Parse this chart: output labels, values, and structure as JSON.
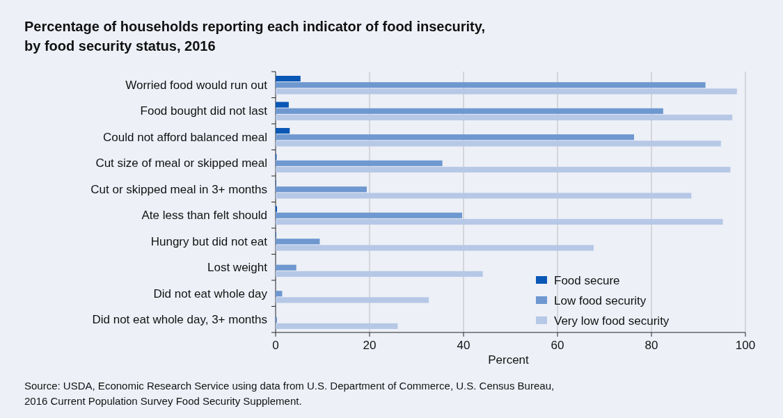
{
  "chart_data": {
    "type": "bar",
    "orientation": "horizontal",
    "title": "Percentage of households reporting each indicator of food insecurity,\nby food security status, 2016",
    "xlabel": "Percent",
    "categories": [
      "Worried food would run out",
      "Food bought did not last",
      "Could not afford balanced meal",
      "Cut size of meal or skipped meal",
      "Cut or skipped meal in 3+ months",
      "Ate less than felt should",
      "Hungry but did not eat",
      "Lost weight",
      "Did not eat whole day",
      "Did not eat whole day, 3+ months"
    ],
    "series": [
      {
        "name": "Food secure",
        "color": "#0a57b5",
        "values": [
          5.3,
          2.8,
          3.0,
          0.2,
          0.1,
          0.3,
          0.1,
          0,
          0,
          0
        ]
      },
      {
        "name": "Low food security",
        "color": "#6f98d0",
        "values": [
          91.5,
          82.5,
          76.3,
          35.5,
          19.4,
          39.7,
          9.4,
          4.4,
          1.4,
          0.3
        ]
      },
      {
        "name": "Very low food security",
        "color": "#b6c8e6",
        "values": [
          98.2,
          97.2,
          94.8,
          96.8,
          88.5,
          95.2,
          67.7,
          44.1,
          32.6,
          26.0
        ]
      }
    ],
    "xlim": [
      0,
      100
    ],
    "xticks": [
      0,
      20,
      40,
      60,
      80,
      100
    ],
    "grid": "x",
    "legend": "bottom right",
    "annotations": [
      "Source: USDA, Economic Research Service using data from U.S. Department of Commerce, U.S. Census Bureau,\n2016 Current Population Survey Food Security Supplement."
    ]
  }
}
